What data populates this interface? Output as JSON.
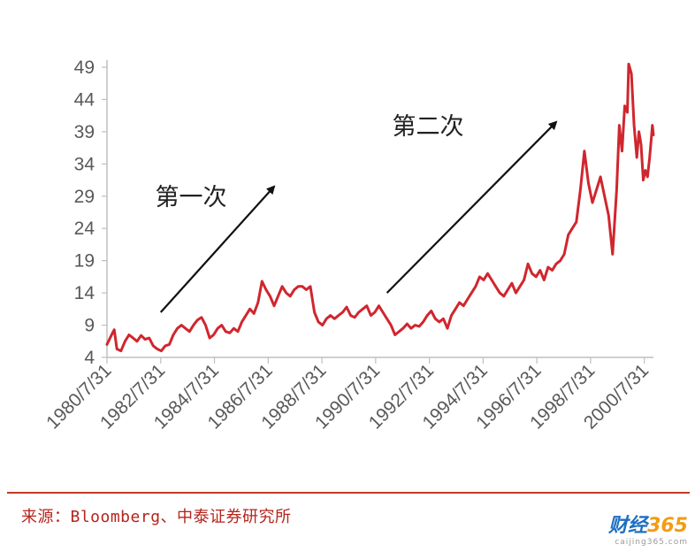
{
  "chart_data": {
    "type": "line",
    "title": "",
    "xlabel": "",
    "ylabel": "",
    "ylim": [
      4,
      49
    ],
    "yticks": [
      4,
      9,
      14,
      19,
      24,
      29,
      34,
      39,
      44,
      49
    ],
    "xlim": [
      1980.58,
      2000.92
    ],
    "x_tick_labels": [
      "1980/7/31",
      "1982/7/31",
      "1984/7/31",
      "1986/7/31",
      "1988/7/31",
      "1990/7/31",
      "1992/7/31",
      "1994/7/31",
      "1996/7/31",
      "1998/7/31",
      "2000/7/31"
    ],
    "x_tick_values": [
      1980.58,
      1982.58,
      1984.58,
      1986.58,
      1988.58,
      1990.58,
      1992.58,
      1994.58,
      1996.58,
      1998.58,
      2000.58
    ],
    "series": [
      {
        "name": "",
        "color": "#d0262e",
        "points": [
          [
            1980.58,
            6.0
          ],
          [
            1980.75,
            7.5
          ],
          [
            1980.85,
            8.3
          ],
          [
            1980.95,
            5.3
          ],
          [
            1981.1,
            5.0
          ],
          [
            1981.25,
            6.5
          ],
          [
            1981.4,
            7.5
          ],
          [
            1981.55,
            7.0
          ],
          [
            1981.7,
            6.5
          ],
          [
            1981.85,
            7.4
          ],
          [
            1982.0,
            6.8
          ],
          [
            1982.15,
            7.0
          ],
          [
            1982.3,
            5.8
          ],
          [
            1982.45,
            5.3
          ],
          [
            1982.6,
            5.0
          ],
          [
            1982.75,
            5.8
          ],
          [
            1982.9,
            6.0
          ],
          [
            1983.05,
            7.5
          ],
          [
            1983.2,
            8.5
          ],
          [
            1983.35,
            9.0
          ],
          [
            1983.5,
            8.5
          ],
          [
            1983.65,
            8.0
          ],
          [
            1983.8,
            9.0
          ],
          [
            1983.95,
            9.8
          ],
          [
            1984.1,
            10.2
          ],
          [
            1984.25,
            9.0
          ],
          [
            1984.4,
            7.0
          ],
          [
            1984.55,
            7.5
          ],
          [
            1984.7,
            8.5
          ],
          [
            1984.85,
            9.0
          ],
          [
            1985.0,
            8.0
          ],
          [
            1985.15,
            7.8
          ],
          [
            1985.3,
            8.5
          ],
          [
            1985.45,
            8.0
          ],
          [
            1985.6,
            9.5
          ],
          [
            1985.75,
            10.5
          ],
          [
            1985.9,
            11.5
          ],
          [
            1986.05,
            10.8
          ],
          [
            1986.2,
            12.5
          ],
          [
            1986.35,
            15.8
          ],
          [
            1986.5,
            14.5
          ],
          [
            1986.65,
            13.5
          ],
          [
            1986.8,
            12.0
          ],
          [
            1986.95,
            13.5
          ],
          [
            1987.1,
            15.0
          ],
          [
            1987.25,
            14.0
          ],
          [
            1987.4,
            13.5
          ],
          [
            1987.55,
            14.5
          ],
          [
            1987.7,
            15.0
          ],
          [
            1987.85,
            15.0
          ],
          [
            1988.0,
            14.5
          ],
          [
            1988.15,
            15.0
          ],
          [
            1988.3,
            11.0
          ],
          [
            1988.45,
            9.5
          ],
          [
            1988.6,
            9.0
          ],
          [
            1988.75,
            10.0
          ],
          [
            1988.9,
            10.5
          ],
          [
            1989.05,
            10.0
          ],
          [
            1989.2,
            10.5
          ],
          [
            1989.35,
            11.0
          ],
          [
            1989.5,
            11.8
          ],
          [
            1989.65,
            10.5
          ],
          [
            1989.8,
            10.2
          ],
          [
            1989.95,
            11.0
          ],
          [
            1990.1,
            11.5
          ],
          [
            1990.25,
            12.0
          ],
          [
            1990.4,
            10.5
          ],
          [
            1990.55,
            11.0
          ],
          [
            1990.7,
            12.0
          ],
          [
            1990.85,
            11.0
          ],
          [
            1991.0,
            10.0
          ],
          [
            1991.15,
            9.0
          ],
          [
            1991.3,
            7.5
          ],
          [
            1991.45,
            8.0
          ],
          [
            1991.6,
            8.5
          ],
          [
            1991.75,
            9.2
          ],
          [
            1991.9,
            8.5
          ],
          [
            1992.05,
            9.0
          ],
          [
            1992.2,
            8.8
          ],
          [
            1992.35,
            9.5
          ],
          [
            1992.5,
            10.5
          ],
          [
            1992.65,
            11.2
          ],
          [
            1992.8,
            10.0
          ],
          [
            1992.95,
            9.5
          ],
          [
            1993.1,
            10.0
          ],
          [
            1993.25,
            8.5
          ],
          [
            1993.4,
            10.5
          ],
          [
            1993.55,
            11.5
          ],
          [
            1993.7,
            12.5
          ],
          [
            1993.85,
            12.0
          ],
          [
            1994.0,
            13.0
          ],
          [
            1994.15,
            14.0
          ],
          [
            1994.3,
            15.0
          ],
          [
            1994.45,
            16.5
          ],
          [
            1994.6,
            16.0
          ],
          [
            1994.75,
            17.0
          ],
          [
            1994.9,
            16.0
          ],
          [
            1995.05,
            15.0
          ],
          [
            1995.2,
            14.0
          ],
          [
            1995.35,
            13.5
          ],
          [
            1995.5,
            14.5
          ],
          [
            1995.65,
            15.5
          ],
          [
            1995.8,
            14.0
          ],
          [
            1995.95,
            15.0
          ],
          [
            1996.1,
            16.0
          ],
          [
            1996.25,
            18.5
          ],
          [
            1996.4,
            17.0
          ],
          [
            1996.55,
            16.5
          ],
          [
            1996.7,
            17.5
          ],
          [
            1996.85,
            16.0
          ],
          [
            1997.0,
            18.0
          ],
          [
            1997.15,
            17.5
          ],
          [
            1997.3,
            18.5
          ],
          [
            1997.45,
            19.0
          ],
          [
            1997.6,
            20.0
          ],
          [
            1997.75,
            23.0
          ],
          [
            1997.9,
            24.0
          ],
          [
            1998.05,
            25.0
          ],
          [
            1998.2,
            30.0
          ],
          [
            1998.35,
            36.0
          ],
          [
            1998.5,
            31.0
          ],
          [
            1998.65,
            28.0
          ],
          [
            1998.8,
            30.0
          ],
          [
            1998.95,
            32.0
          ],
          [
            1999.1,
            29.0
          ],
          [
            1999.25,
            26.0
          ],
          [
            1999.4,
            20.0
          ],
          [
            1999.55,
            30.0
          ],
          [
            1999.65,
            40.0
          ],
          [
            1999.75,
            36.0
          ],
          [
            1999.85,
            43.0
          ],
          [
            1999.95,
            42.0
          ],
          [
            2000.0,
            49.5
          ],
          [
            2000.1,
            48.0
          ],
          [
            2000.2,
            40.0
          ],
          [
            2000.3,
            35.0
          ],
          [
            2000.38,
            39.0
          ],
          [
            2000.46,
            37.0
          ],
          [
            2000.54,
            31.5
          ],
          [
            2000.62,
            33.0
          ],
          [
            2000.7,
            32.0
          ],
          [
            2000.78,
            35.0
          ],
          [
            2000.84,
            38.0
          ],
          [
            2000.88,
            40.0
          ],
          [
            2000.92,
            38.5
          ]
        ]
      }
    ],
    "annotations": [
      {
        "text": "第一次",
        "arrow_from": [
          1982.58,
          11.0
        ],
        "arrow_to": [
          1986.8,
          30.5
        ]
      },
      {
        "text": "第二次",
        "arrow_from": [
          1991.0,
          14.0
        ],
        "arrow_to": [
          1997.3,
          40.5
        ]
      }
    ]
  },
  "footer": {
    "source_text": "来源：Bloomberg、中泰证券研究所",
    "divider_color": "#c0392b"
  },
  "watermark": {
    "brand": "财经",
    "number": "365",
    "site": "caijing365.com"
  }
}
